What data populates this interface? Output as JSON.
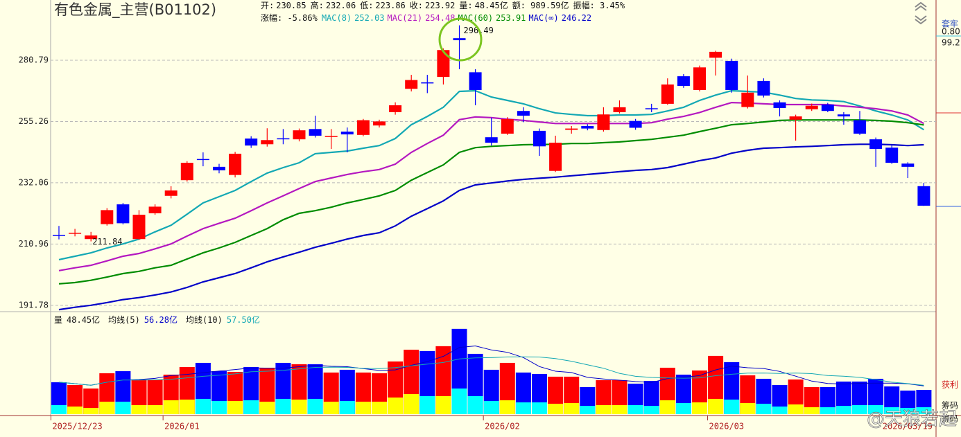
{
  "chart_data": [
    {
      "type": "candlestick",
      "title": "有色金属_主营(B01102)",
      "categories": [
        "2025/12/23",
        null,
        null,
        null,
        null,
        null,
        null,
        "2026/01",
        null,
        null,
        null,
        null,
        null,
        null,
        null,
        null,
        null,
        null,
        null,
        null,
        null,
        null,
        null,
        null,
        null,
        null,
        null,
        "2026/02",
        null,
        null,
        null,
        null,
        null,
        null,
        null,
        null,
        null,
        null,
        null,
        null,
        null,
        "2026/03",
        null,
        null,
        null,
        null,
        null,
        null,
        null,
        null,
        null,
        null,
        null,
        null,
        "2026/03/19"
      ],
      "open": [
        214.0,
        214.5,
        212.6,
        217.6,
        224.4,
        212.6,
        221.3,
        227.4,
        233.0,
        240.8,
        237.9,
        234.9,
        248.6,
        246.4,
        248.7,
        248.3,
        252.3,
        249.4,
        251.3,
        250.0,
        253.7,
        259.0,
        268.6,
        271.3,
        273.6,
        290.6,
        275.6,
        249.1,
        250.5,
        259.5,
        251.6,
        236.4,
        252.0,
        253.5,
        251.9,
        259.0,
        255.5,
        260.6,
        262.4,
        273.9,
        268.1,
        281.9,
        280.5,
        261.1,
        271.9,
        263.0,
        256.0,
        260.2,
        262.1,
        258.1,
        255.8,
        248.3,
        245.1,
        239.1,
        230.85
      ],
      "high": [
        217.0,
        216.0,
        215.0,
        223.1,
        224.9,
        222.4,
        224.4,
        230.8,
        240.0,
        243.3,
        239.0,
        243.5,
        249.5,
        252.6,
        252.3,
        252.5,
        257.6,
        252.3,
        252.9,
        256.3,
        256.0,
        263.0,
        274.5,
        274.5,
        286.0,
        296.49,
        276.9,
        256.8,
        257.0,
        261.0,
        252.5,
        249.7,
        253.5,
        254.2,
        261.0,
        263.8,
        256.3,
        262.4,
        273.0,
        274.8,
        278.5,
        285.0,
        281.5,
        274.2,
        273.0,
        263.8,
        258.0,
        262.5,
        262.8,
        259.0,
        259.5,
        249.0,
        246.0,
        239.6,
        232.06
      ],
      "low": [
        212.5,
        213.5,
        211.84,
        217.1,
        217.5,
        212.4,
        220.8,
        226.5,
        232.5,
        238.1,
        235.5,
        234.0,
        245.0,
        245.5,
        246.4,
        247.5,
        249.0,
        244.6,
        243.3,
        249.5,
        252.9,
        258.0,
        267.5,
        266.8,
        270.4,
        276.9,
        261.8,
        245.9,
        250.0,
        255.0,
        242.0,
        236.0,
        250.5,
        251.8,
        251.3,
        258.5,
        252.0,
        259.0,
        262.0,
        269.0,
        267.5,
        274.2,
        267.0,
        260.5,
        265.0,
        257.3,
        247.8,
        259.5,
        259.0,
        254.0,
        250.0,
        237.9,
        239.0,
        233.8,
        223.86
      ],
      "close": [
        213.8,
        214.7,
        213.8,
        222.4,
        217.9,
        220.8,
        223.6,
        229.3,
        239.4,
        240.5,
        236.6,
        242.8,
        245.9,
        248.0,
        248.4,
        251.8,
        249.7,
        249.6,
        250.2,
        255.8,
        255.3,
        261.8,
        272.3,
        271.0,
        285.3,
        289.7,
        268.1,
        247.0,
        256.2,
        257.6,
        245.6,
        247.0,
        252.5,
        252.5,
        258.1,
        261.0,
        252.8,
        260.4,
        270.4,
        269.8,
        277.7,
        284.5,
        268.1,
        267.0,
        265.8,
        260.7,
        257.3,
        261.6,
        259.5,
        257.3,
        250.5,
        244.6,
        239.4,
        237.9,
        223.92
      ],
      "up_color": "#ff0000",
      "down_color": "#0000ff",
      "series": [
        {
          "name": "MAC(8)",
          "color": "#13a8b4",
          "values": [
            205.9,
            207.0,
            208.1,
            209.7,
            211.0,
            212.6,
            215.0,
            217.2,
            221.0,
            224.9,
            227.1,
            229.3,
            232.5,
            235.6,
            237.6,
            239.4,
            242.8,
            243.3,
            243.8,
            244.9,
            245.9,
            248.6,
            254.0,
            257.3,
            261.0,
            267.5,
            267.8,
            265.2,
            263.8,
            262.4,
            260.4,
            258.7,
            258.1,
            257.6,
            257.6,
            257.9,
            257.9,
            258.1,
            259.5,
            261.0,
            263.8,
            266.0,
            267.8,
            267.5,
            267.2,
            266.0,
            264.6,
            264.0,
            263.8,
            263.3,
            261.5,
            259.5,
            257.9,
            255.9,
            252.03
          ]
        },
        {
          "name": "MAC(21)",
          "color": "#b418c0",
          "values": [
            202.4,
            203.3,
            204.1,
            205.5,
            207.0,
            207.9,
            209.4,
            211.0,
            213.6,
            216.1,
            217.9,
            219.6,
            222.2,
            224.9,
            227.4,
            230.0,
            232.5,
            233.8,
            235.1,
            236.1,
            236.9,
            238.9,
            243.3,
            246.7,
            249.9,
            256.0,
            257.1,
            256.8,
            256.2,
            255.7,
            255.1,
            254.5,
            254.5,
            254.5,
            254.5,
            254.5,
            254.5,
            254.8,
            256.2,
            257.3,
            258.9,
            261.0,
            262.9,
            262.7,
            262.4,
            262.1,
            262.1,
            262.1,
            262.1,
            261.5,
            261.0,
            260.4,
            259.5,
            257.9,
            254.48
          ]
        },
        {
          "name": "MAC(60)",
          "color": "#008c00",
          "values": [
            198.3,
            198.7,
            199.4,
            200.4,
            201.5,
            202.2,
            203.3,
            204.1,
            206.1,
            208.1,
            209.7,
            211.5,
            213.8,
            216.1,
            219.1,
            221.3,
            222.2,
            223.4,
            224.9,
            226.1,
            227.4,
            229.3,
            233.0,
            235.8,
            238.6,
            243.3,
            245.1,
            245.6,
            245.9,
            246.2,
            246.3,
            246.4,
            246.7,
            246.7,
            247.0,
            247.3,
            247.8,
            248.3,
            249.1,
            249.9,
            251.3,
            252.6,
            254.0,
            254.5,
            255.1,
            255.7,
            255.9,
            255.9,
            255.9,
            255.9,
            255.9,
            255.7,
            255.4,
            254.8,
            253.91
          ]
        },
        {
          "name": "MAC(∞)",
          "color": "#0000c8",
          "values": [
            190.5,
            191.2,
            191.8,
            192.6,
            193.5,
            194.1,
            194.9,
            195.8,
            197.2,
            198.9,
            200.2,
            201.5,
            203.3,
            205.2,
            206.8,
            208.3,
            209.9,
            211.2,
            212.6,
            213.8,
            214.7,
            217.0,
            220.3,
            222.9,
            225.6,
            229.3,
            231.3,
            232.0,
            232.7,
            233.3,
            233.7,
            234.1,
            234.6,
            235.1,
            235.6,
            236.1,
            236.6,
            236.9,
            237.6,
            238.9,
            240.2,
            241.2,
            243.0,
            244.1,
            244.9,
            245.1,
            245.4,
            245.6,
            245.9,
            246.2,
            246.4,
            246.4,
            246.2,
            245.9,
            246.22
          ]
        }
      ],
      "ylim": [
        189.9,
        308.4
      ],
      "log_scale": true,
      "yticks": [
        191.78,
        210.96,
        232.06,
        255.26,
        280.79
      ],
      "grid": true,
      "info_labels": [
        "开:",
        "高:",
        "低:",
        "收:",
        "量:"
      ],
      "info": [
        "额: 989.59亿",
        "振幅: 3.45%"
      ],
      "change": "涨幅: -5.86%"
    },
    {
      "type": "bar",
      "label": "量",
      "last_label": "48.45亿",
      "values": [
        63.7,
        58.1,
        51.2,
        81.7,
        85.8,
        69.2,
        69.2,
        78.9,
        94.1,
        102.4,
        85.8,
        84.4,
        94.1,
        92.7,
        102.4,
        99.7,
        99.7,
        83.1,
        88.6,
        83.1,
        81.7,
        105.2,
        128.7,
        126.0,
        135.7,
        170.3,
        120.4,
        88.6,
        102.4,
        83.1,
        80.3,
        74.8,
        74.8,
        54.0,
        67.8,
        67.8,
        60.9,
        66.4,
        92.7,
        78.9,
        87.2,
        116.3,
        103.8,
        77.5,
        70.6,
        58.1,
        69.2,
        54.0,
        54.0,
        65.1,
        65.1,
        70.6,
        55.4,
        47.1,
        48.45
      ],
      "sub_values": [
        18.0,
        15.2,
        12.5,
        24.9,
        24.9,
        18.0,
        18.0,
        27.7,
        29.1,
        30.5,
        26.3,
        26.3,
        27.7,
        24.9,
        30.5,
        29.1,
        30.5,
        24.9,
        26.3,
        24.9,
        24.9,
        33.2,
        40.1,
        36.0,
        36.0,
        51.2,
        36.0,
        26.3,
        27.7,
        23.5,
        23.5,
        20.8,
        22.1,
        16.6,
        18.0,
        18.0,
        18.0,
        16.6,
        27.7,
        22.1,
        23.5,
        30.5,
        29.1,
        22.1,
        20.8,
        15.2,
        19.4,
        13.8,
        13.8,
        16.6,
        18.0,
        18.0,
        13.8,
        12.5,
        13.8
      ],
      "up_color": "#ff0000",
      "down_color": "#0000ff",
      "sub_up_color": "#ffff00",
      "sub_down_color": "#00ffff",
      "series": [
        {
          "name": "均线(5)",
          "color": "#0000c8",
          "last_label": "56.28亿",
          "values": [
            63.7,
            60.9,
            57.7,
            63.7,
            68.1,
            69.2,
            71.4,
            77.0,
            79.4,
            82.8,
            86.1,
            89.1,
            92.2,
            91.9,
            91.9,
            94.7,
            97.7,
            95.5,
            94.7,
            90.8,
            87.2,
            88.3,
            97.5,
            104.9,
            115.5,
            133.2,
            136.2,
            128.2,
            123.5,
            113.0,
            95.0,
            85.8,
            83.1,
            73.4,
            70.3,
            67.8,
            65.1,
            63.4,
            71.1,
            73.3,
            77.2,
            88.3,
            95.8,
            92.7,
            91.1,
            85.3,
            75.8,
            65.9,
            61.2,
            60.1,
            61.5,
            61.8,
            62.0,
            60.7,
            56.28
          ]
        },
        {
          "name": "均线(10)",
          "color": "#13a8b4",
          "last_label": "57.50亿",
          "values": [
            63.7,
            60.9,
            57.7,
            63.7,
            68.1,
            68.2,
            68.4,
            69.7,
            72.4,
            75.5,
            77.7,
            80.3,
            84.6,
            85.7,
            87.4,
            90.4,
            93.4,
            93.9,
            93.3,
            91.4,
            91.0,
            93.0,
            96.5,
            99.8,
            103.2,
            110.2,
            112.3,
            112.9,
            114.2,
            114.3,
            114.1,
            111.0,
            105.7,
            98.5,
            91.7,
            81.4,
            75.5,
            73.3,
            72.3,
            71.8,
            72.5,
            76.7,
            79.6,
            81.9,
            82.2,
            81.3,
            82.1,
            80.9,
            77.0,
            75.6,
            73.4,
            68.8,
            64.0,
            61.0,
            57.5
          ]
        }
      ],
      "ylim": [
        0,
        177
      ]
    }
  ],
  "side_panel": {
    "texts": [
      "套牢",
      "0.80",
      "99.2",
      "获利",
      "筹码",
      "筹码"
    ]
  },
  "watermark": "@天狼若起"
}
